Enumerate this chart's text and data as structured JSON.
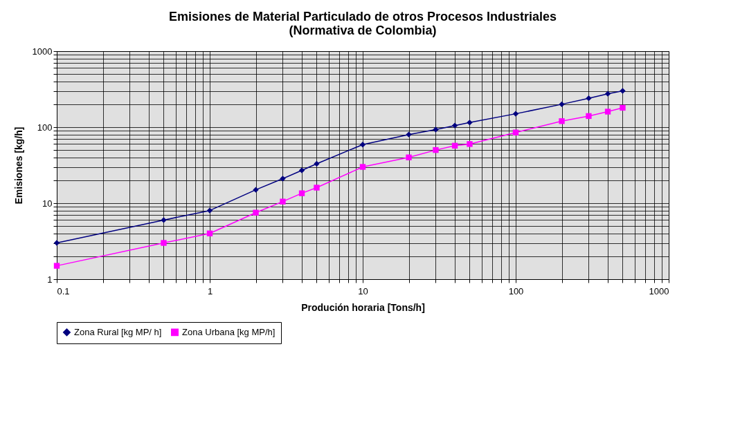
{
  "chart_data": {
    "type": "line",
    "title": [
      "Emisiones de Material Particulado de otros Procesos Industriales",
      "(Normativa de Colombia)"
    ],
    "xlabel": "Produción horaria [Tons/h]",
    "ylabel": "Emisiones [kg/h]",
    "log": "xy",
    "grid": true,
    "legend": "bottom",
    "xlim": [
      0.1,
      1000
    ],
    "xticks": [
      0.1,
      1,
      10,
      100,
      1000
    ],
    "ylim": [
      1,
      1000
    ],
    "yticks": [
      1,
      10,
      100,
      1000
    ],
    "x": [
      0.1,
      0.5,
      1,
      2,
      3,
      4,
      5,
      10,
      20,
      30,
      40,
      50,
      100,
      200,
      300,
      400,
      500
    ],
    "series": [
      {
        "name": "Zona Rural [kg MP/ h]",
        "color": "#000080",
        "marker": "diamond",
        "values": [
          3,
          6,
          8,
          15,
          21,
          27,
          33,
          59,
          80,
          93,
          105,
          115,
          150,
          200,
          240,
          275,
          300
        ]
      },
      {
        "name": "Zona Urbana [kg MP/h]",
        "color": "#ff00ff",
        "marker": "square",
        "values": [
          1.5,
          3,
          4,
          7.5,
          10.5,
          13.5,
          16,
          30,
          40,
          50,
          57,
          60,
          85,
          120,
          140,
          160,
          180
        ]
      }
    ]
  }
}
